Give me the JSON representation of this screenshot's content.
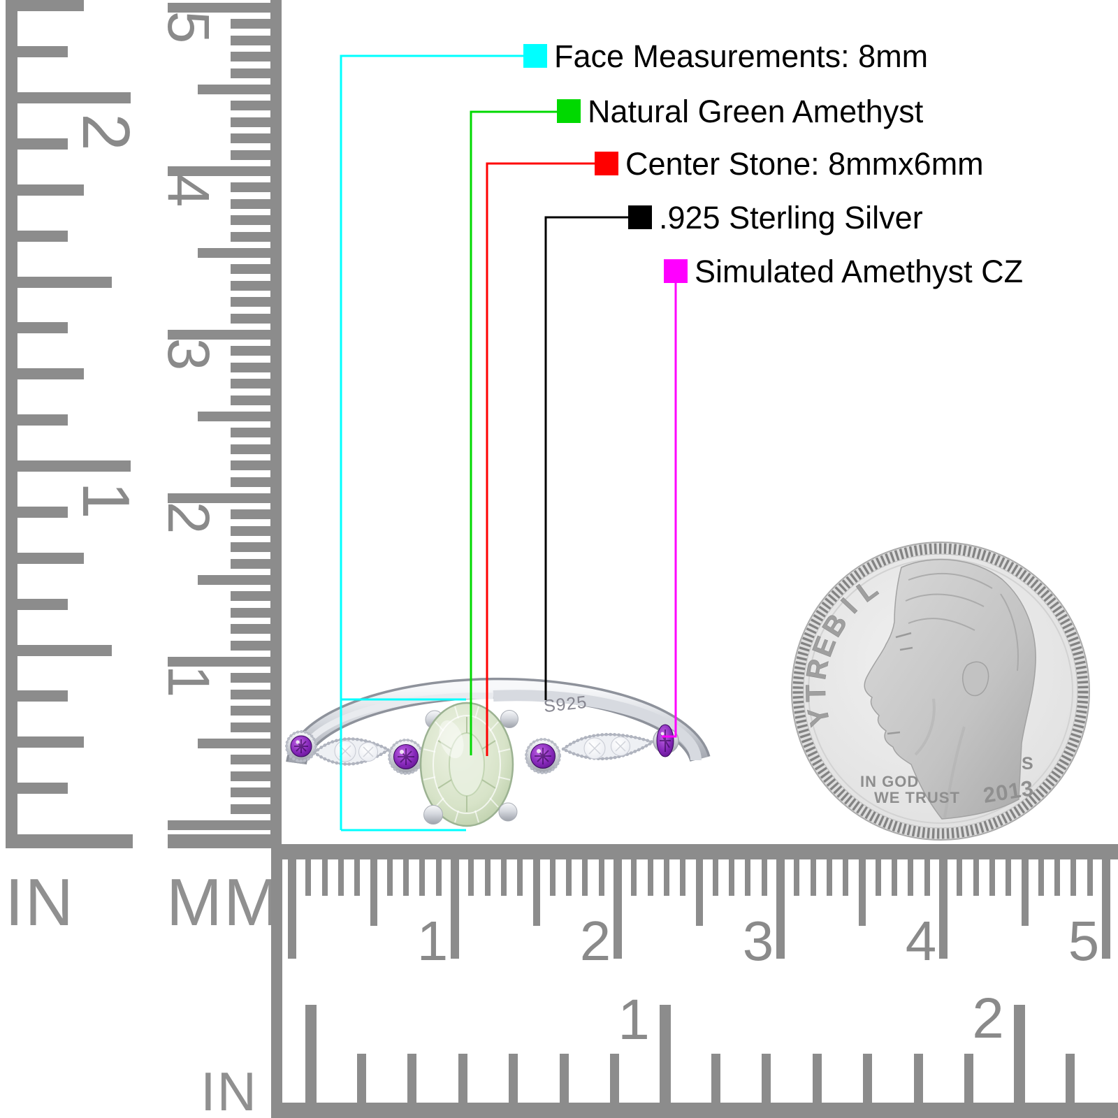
{
  "annotations": {
    "items": [
      {
        "label": "Face Measurements: 8mm",
        "color": "#00ffff"
      },
      {
        "label": "Natural Green Amethyst",
        "color": "#00d900"
      },
      {
        "label": "Center Stone: 8mmx6mm",
        "color": "#ff0000"
      },
      {
        "label": ".925 Sterling Silver",
        "color": "#000000"
      },
      {
        "label": "Simulated Amethyst CZ",
        "color": "#ff00ff"
      }
    ]
  },
  "ring": {
    "engraving": "S925"
  },
  "coin": {
    "legend": "LIBERTY",
    "motto_line1": "IN GOD",
    "motto_line2": "WE TRUST",
    "mint_mark": "S",
    "year": "2013"
  },
  "rulers": {
    "left_inch": {
      "label": "IN",
      "numbers": [
        "2",
        "1"
      ]
    },
    "left_cm": {
      "label": "MM",
      "numbers": [
        "5",
        "4",
        "3",
        "2",
        "1"
      ]
    },
    "bottom_cm": {
      "numbers": [
        "1",
        "2",
        "3",
        "4",
        "5"
      ]
    },
    "bottom_inch": {
      "label": "IN",
      "numbers": [
        "1",
        "2"
      ]
    }
  },
  "colors": {
    "ruler_gray": "#8c8c8c",
    "metal_silver": "#c9ccd3",
    "stone_green": "#d7e3c8",
    "amethyst_purple": "#7d22ae",
    "cz_white": "#eef0f4"
  }
}
